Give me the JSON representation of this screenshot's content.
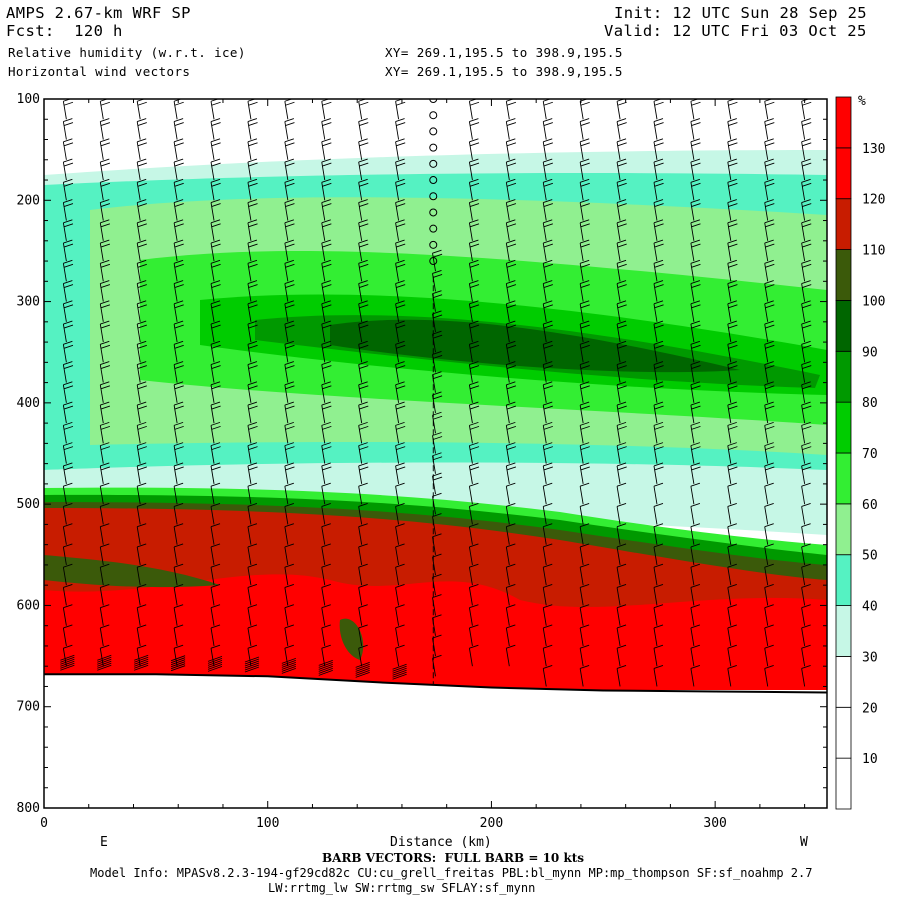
{
  "header": {
    "model": "AMPS 2.67-km WRF SP",
    "init": "Init: 12 UTC Sun 28 Sep 25",
    "forecast": "Fcst:  120 h",
    "valid": "Valid: 12 UTC Fri 03 Oct 25",
    "field1": "Relative humidity (w.r.t. ice)",
    "field2": "Horizontal wind vectors",
    "xy1": "XY= 269.1,195.5 to 398.9,195.5",
    "xy2": "XY= 269.1,195.5 to 398.9,195.5"
  },
  "chart_data": {
    "type": "heatmap",
    "title": "Relative humidity (w.r.t. ice)",
    "xlabel": "Distance (km)",
    "ylabel": "",
    "xlim": [
      0,
      350
    ],
    "ylim": [
      800,
      100
    ],
    "x_ticks": [
      0,
      100,
      200,
      300
    ],
    "y_ticks": [
      100,
      200,
      300,
      400,
      500,
      600,
      700,
      800
    ],
    "x_end_labels": {
      "left": "E",
      "right": "W"
    },
    "colorbar": {
      "unit": "%",
      "levels": [
        10,
        20,
        30,
        40,
        50,
        60,
        70,
        80,
        90,
        100,
        110,
        120,
        130
      ],
      "colors": [
        "#ffffff",
        "#ffffff",
        "#ffffff",
        "#c6f7e6",
        "#55f2c2",
        "#90f090",
        "#33ee33",
        "#00cc00",
        "#009900",
        "#006600",
        "#3b5a0a",
        "#c81c00",
        "#ff0000",
        "#ff0000"
      ]
    },
    "terrain_pressure": [
      {
        "x": 0,
        "p": 668
      },
      {
        "x": 50,
        "p": 668
      },
      {
        "x": 100,
        "p": 670
      },
      {
        "x": 150,
        "p": 676
      },
      {
        "x": 200,
        "p": 681
      },
      {
        "x": 250,
        "p": 684
      },
      {
        "x": 300,
        "p": 685
      },
      {
        "x": 350,
        "p": 686
      }
    ],
    "barb_note": "BARB VECTORS:  FULL BARB = 10 kts"
  },
  "footer": {
    "barb": "BARB VECTORS:  FULL BARB = 10 kts",
    "model_info": "Model Info: MPASv8.2.3-194-gf29cd82c CU:cu_grell_freitas PBL:bl_mynn MP:mp_thompson SF:sf_noahmp 2.7",
    "model_info2": "LW:rrtmg_lw SW:rrtmg_sw SFLAY:sf_mynn"
  }
}
